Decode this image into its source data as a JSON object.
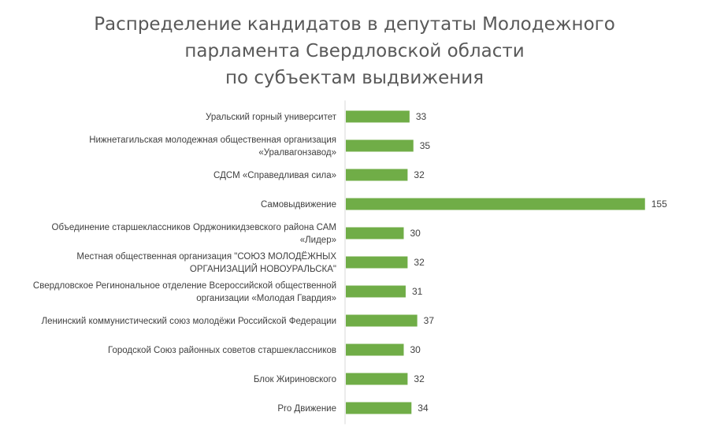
{
  "chart_data": {
    "type": "bar",
    "orientation": "horizontal",
    "title_lines": [
      "Распределение кандидатов в депутаты Молодежного",
      "парламента Свердловской области",
      "по субъектам выдвижения"
    ],
    "categories": [
      [
        "Уральский горный университет"
      ],
      [
        "Нижнетагильская молодежная общественная организация",
        "«Уралвагонзавод»"
      ],
      [
        "СДСМ «Справедливая сила»"
      ],
      [
        "Самовыдвижение"
      ],
      [
        "Объединение старшеклассников Орджоникидзевского района САМ",
        "«Лидер»"
      ],
      [
        "Местная общественная организация \"СОЮЗ МОЛОДЁЖНЫХ",
        "ОРГАНИЗАЦИЙ НОВОУРАЛЬСКА\""
      ],
      [
        "Свердловское Регинональное отделение Всероссийской общественной",
        "организации «Молодая Гвардия»"
      ],
      [
        "Ленинский коммунистический союз молодёжи Российской Федерации"
      ],
      [
        "Городской Союз районных советов старшеклассников"
      ],
      [
        "Блок Жириновского"
      ],
      [
        "Pro Движение"
      ]
    ],
    "values": [
      33,
      35,
      32,
      155,
      30,
      32,
      31,
      37,
      30,
      32,
      34
    ],
    "bar_color": "#70ad47",
    "grid": false,
    "legend": "none"
  }
}
